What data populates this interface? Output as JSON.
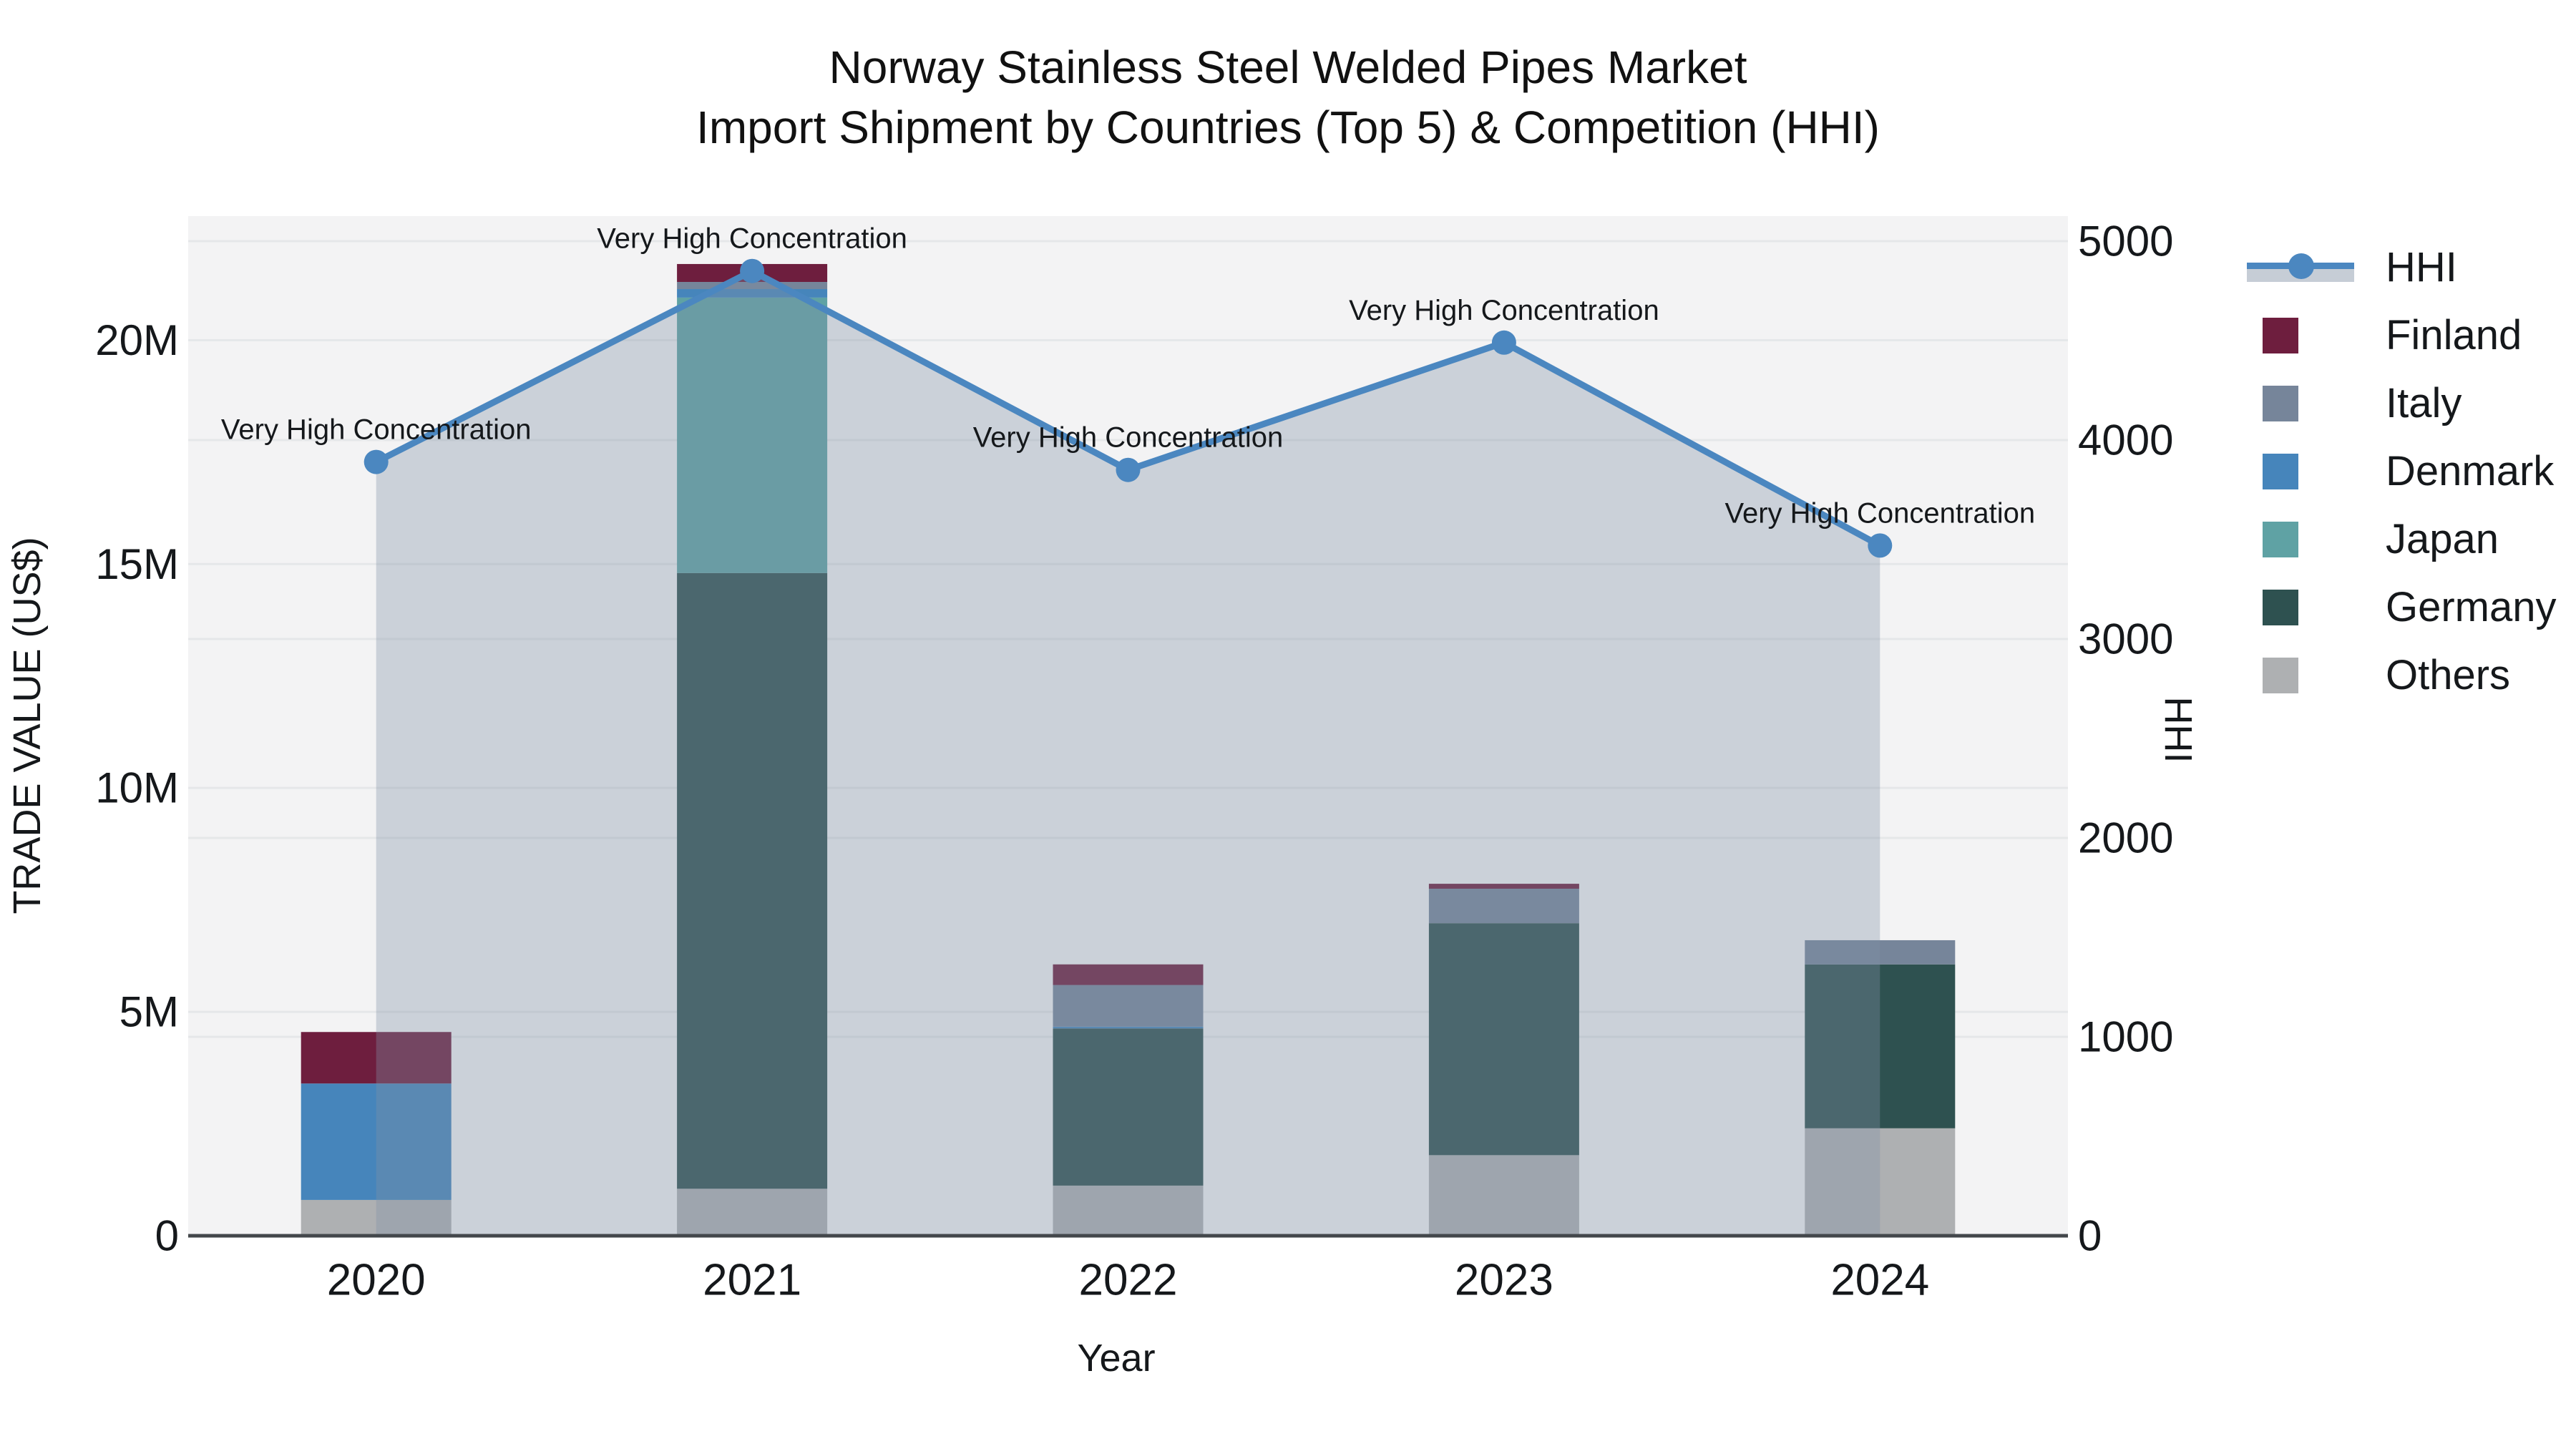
{
  "title": {
    "line1": "Norway Stainless Steel Welded Pipes Market",
    "line2": "Import Shipment by Countries (Top 5) & Competition (HHI)"
  },
  "axes": {
    "left_label": "TRADE VALUE (US$)",
    "right_label": "HHI",
    "bottom_label": "Year"
  },
  "legend": {
    "items": [
      {
        "label": "HHI",
        "type": "line",
        "color": "#4b87c0"
      },
      {
        "label": "Finland",
        "type": "swatch",
        "color": "#6e1e3e"
      },
      {
        "label": "Italy",
        "type": "swatch",
        "color": "#76859a"
      },
      {
        "label": "Denmark",
        "type": "swatch",
        "color": "#4685bb"
      },
      {
        "label": "Japan",
        "type": "swatch",
        "color": "#5fa2a4"
      },
      {
        "label": "Germany",
        "type": "swatch",
        "color": "#2e5150"
      },
      {
        "label": "Others",
        "type": "swatch",
        "color": "#aeb0b2"
      }
    ]
  },
  "colors": {
    "background": "#ffffff",
    "plot_background": "#f3f3f4",
    "grid": "#e5e7e9",
    "axis_line": "#43474b",
    "hhi_line": "#4b87c0",
    "hhi_fill": "rgba(130,145,165,0.35)",
    "text": "#15181b"
  },
  "chart_data": {
    "type": "combo_stacked_bar_line",
    "title": "Norway Stainless Steel Welded Pipes Market — Import Shipment by Countries (Top 5) & Competition (HHI)",
    "categories": [
      "2020",
      "2021",
      "2022",
      "2023",
      "2024"
    ],
    "bar_value_unit": "million US$",
    "stack_order_bottom_to_top": [
      "Others",
      "Germany",
      "Japan",
      "Denmark",
      "Italy",
      "Finland"
    ],
    "series": [
      {
        "name": "Finland",
        "color": "#6e1e3e",
        "values": [
          1.15,
          0.4,
          0.46,
          0.11,
          0
        ]
      },
      {
        "name": "Italy",
        "color": "#76859a",
        "values": [
          0,
          0.16,
          0.93,
          0.77,
          0.54
        ]
      },
      {
        "name": "Denmark",
        "color": "#4685bb",
        "values": [
          2.6,
          0.19,
          0.04,
          0,
          0
        ]
      },
      {
        "name": "Japan",
        "color": "#5fa2a4",
        "values": [
          0,
          6.15,
          0,
          0,
          0
        ]
      },
      {
        "name": "Germany",
        "color": "#2e5150",
        "values": [
          0,
          13.75,
          3.51,
          5.18,
          3.66
        ]
      },
      {
        "name": "Others",
        "color": "#aeb0b2",
        "values": [
          0.8,
          1.05,
          1.12,
          1.8,
          2.4
        ]
      }
    ],
    "bar_totals": [
      4.55,
      21.7,
      6.06,
      7.86,
      6.6
    ],
    "line_series": {
      "name": "HHI",
      "color": "#4b87c0",
      "values": [
        3890,
        4850,
        3850,
        4490,
        3470
      ]
    },
    "annotations": [
      {
        "x": "2020",
        "text": "Very High Concentration"
      },
      {
        "x": "2021",
        "text": "Very High Concentration"
      },
      {
        "x": "2022",
        "text": "Very High Concentration"
      },
      {
        "x": "2023",
        "text": "Very High Concentration"
      },
      {
        "x": "2024",
        "text": "Very High Concentration"
      }
    ],
    "xlabel": "Year",
    "ylabel_left": "TRADE VALUE (US$)",
    "ylabel_right": "HHI",
    "left_axis": {
      "tick_labels": [
        "0",
        "5M",
        "10M",
        "15M",
        "20M"
      ],
      "tick_values": [
        0,
        5,
        10,
        15,
        20
      ],
      "max": 22.77
    },
    "right_axis": {
      "tick_labels": [
        "0",
        "1000",
        "2000",
        "3000",
        "4000",
        "5000"
      ],
      "tick_values": [
        0,
        1000,
        2000,
        3000,
        4000,
        5000
      ],
      "max": 5126
    },
    "grid": true,
    "legend_position": "right"
  }
}
